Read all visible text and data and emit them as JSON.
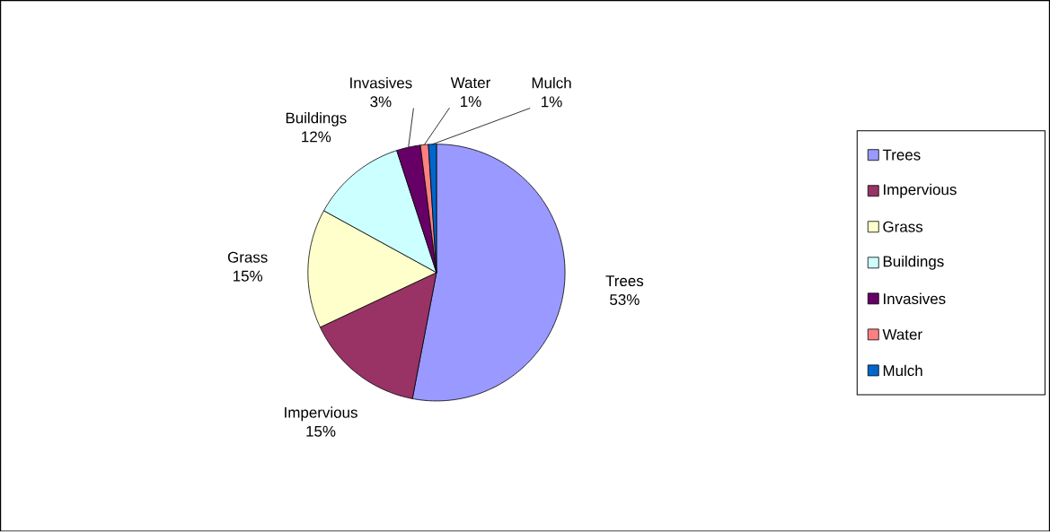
{
  "chart_data": {
    "type": "pie",
    "categories": [
      "Trees",
      "Impervious",
      "Grass",
      "Buildings",
      "Invasives",
      "Water",
      "Mulch"
    ],
    "values": [
      53,
      15,
      15,
      12,
      3,
      1,
      1
    ],
    "value_labels": [
      "53%",
      "15%",
      "15%",
      "12%",
      "3%",
      "1%",
      "1%"
    ],
    "colors": [
      "#9999ff",
      "#993366",
      "#ffffcc",
      "#ccffff",
      "#660066",
      "#ff8080",
      "#0066cc"
    ],
    "legend": "right"
  }
}
